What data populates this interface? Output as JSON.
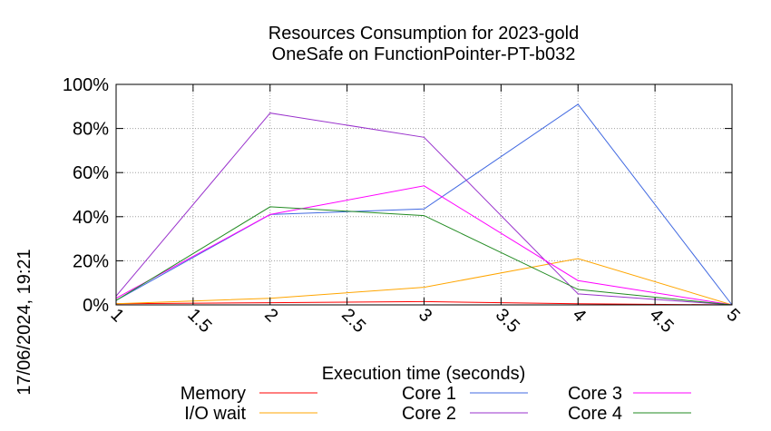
{
  "chart_data": {
    "type": "line",
    "title": "Resources Consumption for 2023-gold",
    "subtitle": "OneSafe on FunctionPointer-PT-b032",
    "xlabel": "Execution time (seconds)",
    "ylabel": "",
    "side_label": "17/06/2024, 19:21",
    "xlim": [
      1,
      5
    ],
    "ylim": [
      0,
      100
    ],
    "x_ticks": [
      "1",
      "1.5",
      "2",
      "2.5",
      "3",
      "3.5",
      "4",
      "4.5",
      "5"
    ],
    "x_tick_values": [
      1,
      1.5,
      2,
      2.5,
      3,
      3.5,
      4,
      4.5,
      5
    ],
    "y_ticks": [
      "0%",
      "20%",
      "40%",
      "60%",
      "80%",
      "100%"
    ],
    "y_tick_values": [
      0,
      20,
      40,
      60,
      80,
      100
    ],
    "grid": true,
    "legend_position": "bottom",
    "x": [
      1,
      2,
      3,
      4,
      5
    ],
    "series": [
      {
        "name": "Memory",
        "color": "#ff0000",
        "values": [
          0.5,
          1,
          1.5,
          0.5,
          0
        ]
      },
      {
        "name": "I/O wait",
        "color": "#ffa500",
        "values": [
          0.5,
          3,
          8,
          21,
          0
        ]
      },
      {
        "name": "Core 1",
        "color": "#4169e1",
        "values": [
          2,
          41,
          43.5,
          91,
          0
        ]
      },
      {
        "name": "Core 2",
        "color": "#9932cc",
        "values": [
          4,
          87,
          76,
          5,
          0
        ]
      },
      {
        "name": "Core 3",
        "color": "#ff00ff",
        "values": [
          3,
          41,
          54,
          11,
          0
        ]
      },
      {
        "name": "Core 4",
        "color": "#228b22",
        "values": [
          2,
          44.5,
          40.5,
          7,
          0
        ]
      }
    ]
  }
}
